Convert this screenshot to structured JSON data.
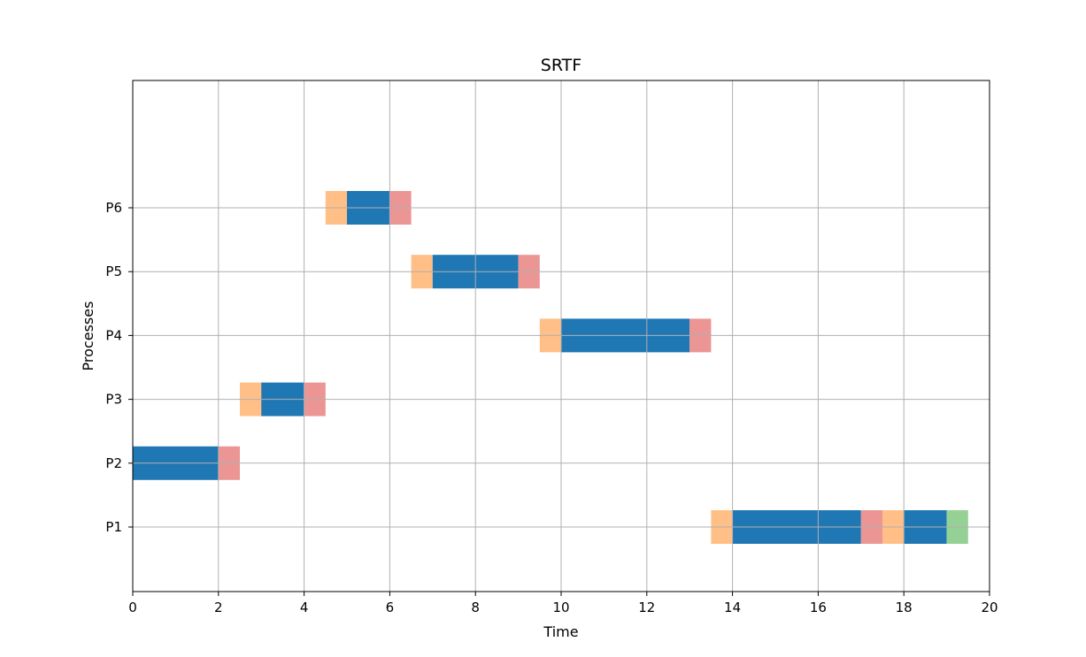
{
  "chart_data": {
    "type": "gantt",
    "title": "SRTF",
    "xlabel": "Time",
    "ylabel": "Processes",
    "xlim": [
      0,
      20
    ],
    "x_ticks": [
      0,
      2,
      4,
      6,
      8,
      10,
      12,
      14,
      16,
      18,
      20
    ],
    "categories": [
      "P1",
      "P2",
      "P3",
      "P4",
      "P5",
      "P6"
    ],
    "grid": true,
    "colors": {
      "run": "#1f77b4",
      "wait": "#ffbf86",
      "switch": "#eb9595",
      "finish": "#95d095"
    },
    "segments": [
      {
        "process": "P2",
        "start": 0,
        "end": 2,
        "kind": "run"
      },
      {
        "process": "P2",
        "start": 2,
        "end": 2.5,
        "kind": "switch"
      },
      {
        "process": "P3",
        "start": 2.5,
        "end": 3,
        "kind": "wait"
      },
      {
        "process": "P3",
        "start": 3,
        "end": 4,
        "kind": "run"
      },
      {
        "process": "P3",
        "start": 4,
        "end": 4.5,
        "kind": "switch"
      },
      {
        "process": "P6",
        "start": 4.5,
        "end": 5,
        "kind": "wait"
      },
      {
        "process": "P6",
        "start": 5,
        "end": 6,
        "kind": "run"
      },
      {
        "process": "P6",
        "start": 6,
        "end": 6.5,
        "kind": "switch"
      },
      {
        "process": "P5",
        "start": 6.5,
        "end": 7,
        "kind": "wait"
      },
      {
        "process": "P5",
        "start": 7,
        "end": 9,
        "kind": "run"
      },
      {
        "process": "P5",
        "start": 9,
        "end": 9.5,
        "kind": "switch"
      },
      {
        "process": "P4",
        "start": 9.5,
        "end": 10,
        "kind": "wait"
      },
      {
        "process": "P4",
        "start": 10,
        "end": 13,
        "kind": "run"
      },
      {
        "process": "P4",
        "start": 13,
        "end": 13.5,
        "kind": "switch"
      },
      {
        "process": "P1",
        "start": 13.5,
        "end": 14,
        "kind": "wait"
      },
      {
        "process": "P1",
        "start": 14,
        "end": 17,
        "kind": "run"
      },
      {
        "process": "P1",
        "start": 17,
        "end": 17.5,
        "kind": "switch"
      },
      {
        "process": "P1",
        "start": 17.5,
        "end": 18,
        "kind": "wait"
      },
      {
        "process": "P1",
        "start": 18,
        "end": 19,
        "kind": "run"
      },
      {
        "process": "P1",
        "start": 19,
        "end": 19.5,
        "kind": "finish"
      }
    ]
  }
}
